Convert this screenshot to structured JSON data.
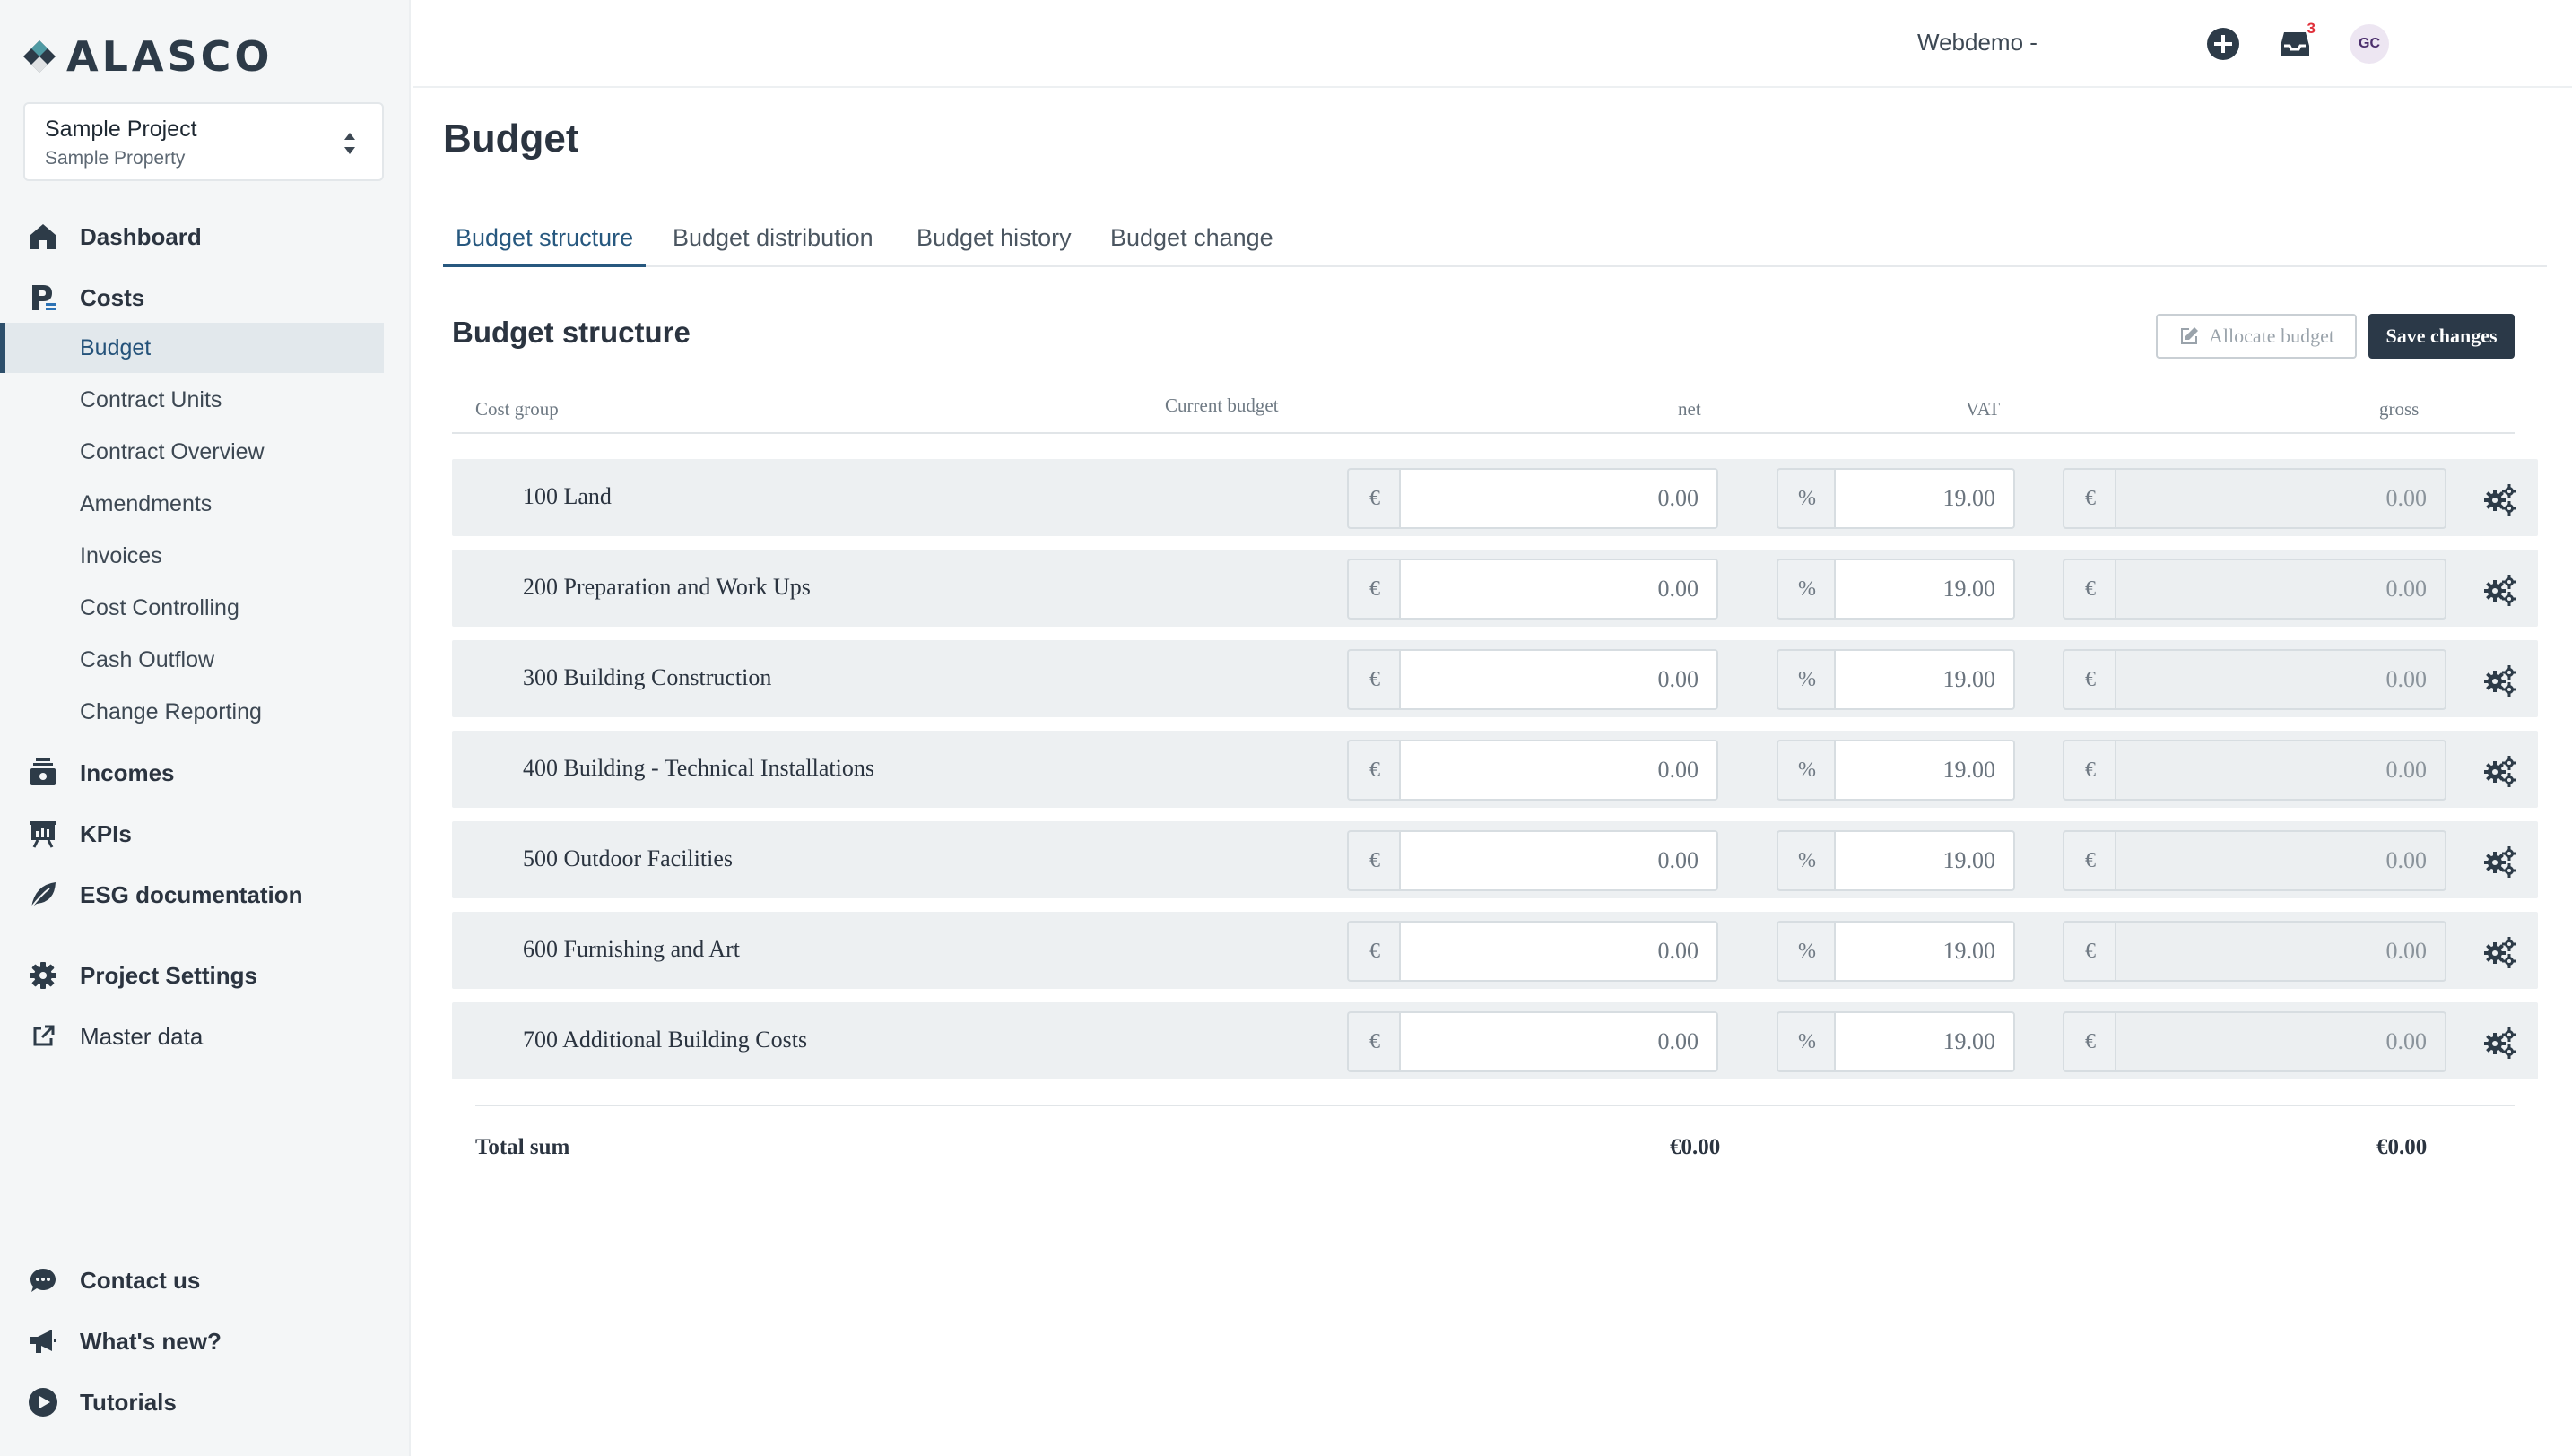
{
  "brand": {
    "name": "ALASCO"
  },
  "project": {
    "name": "Sample Project",
    "property": "Sample Property"
  },
  "nav": {
    "dashboard": "Dashboard",
    "costs": "Costs",
    "costs_sub": [
      "Budget",
      "Contract Units",
      "Contract Overview",
      "Amendments",
      "Invoices",
      "Cost Controlling",
      "Cash Outflow",
      "Change Reporting"
    ],
    "incomes": "Incomes",
    "kpis": "KPIs",
    "esg": "ESG documentation",
    "project_settings": "Project Settings",
    "master_data": "Master data",
    "contact": "Contact us",
    "whats_new": "What's new?",
    "tutorials": "Tutorials"
  },
  "header": {
    "org": "Webdemo -",
    "notifications_count": "3",
    "avatar_initials": "GC"
  },
  "page": {
    "title": "Budget",
    "tabs": [
      "Budget structure",
      "Budget distribution",
      "Budget history",
      "Budget change"
    ],
    "active_tab": "Budget structure"
  },
  "card": {
    "title": "Budget structure",
    "allocate_label": "Allocate budget",
    "save_label": "Save changes"
  },
  "table": {
    "headers": {
      "cost_group": "Cost group",
      "current_budget": "Current budget",
      "net": "net",
      "vat": "VAT",
      "gross": "gross"
    },
    "currency_symbol": "€",
    "percent_symbol": "%",
    "rows": [
      {
        "label": "100 Land",
        "net": "0.00",
        "vat": "19.00",
        "gross": "0.00"
      },
      {
        "label": "200 Preparation and Work Ups",
        "net": "0.00",
        "vat": "19.00",
        "gross": "0.00"
      },
      {
        "label": "300 Building Construction",
        "net": "0.00",
        "vat": "19.00",
        "gross": "0.00"
      },
      {
        "label": "400 Building - Technical Installations",
        "net": "0.00",
        "vat": "19.00",
        "gross": "0.00"
      },
      {
        "label": "500 Outdoor Facilities",
        "net": "0.00",
        "vat": "19.00",
        "gross": "0.00"
      },
      {
        "label": "600 Furnishing and Art",
        "net": "0.00",
        "vat": "19.00",
        "gross": "0.00"
      },
      {
        "label": "700 Additional Building Costs",
        "net": "0.00",
        "vat": "19.00",
        "gross": "0.00"
      }
    ],
    "total": {
      "label": "Total sum",
      "net": "€0.00",
      "gross": "€0.00"
    }
  },
  "colors": {
    "primary": "#27587f",
    "dark": "#2b3948",
    "sidebar_bg": "#f4f6f7",
    "row_bg": "#edf0f2",
    "badge": "#e0303a"
  }
}
